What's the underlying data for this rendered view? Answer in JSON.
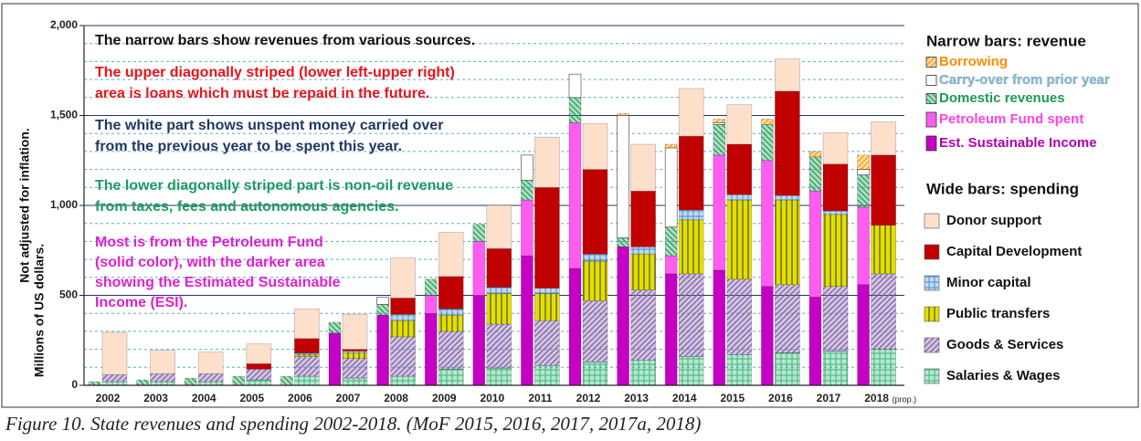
{
  "chart_data": {
    "type": "bar",
    "caption": "Figure 10. State revenues and spending 2002-2018. (MoF 2015, 2016, 2017, 2017a, 2018)",
    "ylabel": "Millions of US dollars.",
    "ylabel2": "Not adjusted for inflation.",
    "categories": [
      "2002",
      "2003",
      "2004",
      "2005",
      "2006",
      "2007",
      "2008",
      "2009",
      "2010",
      "2011",
      "2012",
      "2013",
      "2014",
      "2015",
      "2016",
      "2017",
      "2018"
    ],
    "category_note": "(prop.)",
    "ylim": [
      0,
      2000
    ],
    "yticks": [
      0,
      500,
      {
        "value": 1000,
        "label": "1,000"
      },
      {
        "value": 1500,
        "label": "1,500"
      },
      {
        "value": 2000,
        "label": "2,000"
      }
    ],
    "minor_yticks": [
      100,
      200,
      300,
      400,
      600,
      700,
      800,
      900,
      1100,
      1200,
      1300,
      1400,
      1600,
      1700,
      1800,
      1900
    ],
    "grid": true,
    "legend_groups": {
      "narrow": "Narrow bars: revenue",
      "wide": "Wide bars: spending"
    },
    "annotations": [
      {
        "color": "#111111",
        "lines": [
          "The narrow bars show revenues from various sources."
        ]
      },
      {
        "color": "#e8141b",
        "lines": [
          "The upper diagonally striped (lower left-upper right)",
          "area is loans which must be repaid in the future."
        ]
      },
      {
        "color": "#1f3864",
        "lines": [
          "The white part shows unspent money carried over",
          "from the previous year to be spent this year."
        ]
      },
      {
        "color": "#1e9a64",
        "lines": [
          "The lower diagonally striped part is non-oil revenue",
          "from taxes, fees and autonomous agencies."
        ]
      },
      {
        "color": "#e020d0",
        "lines": [
          "Most is from the Petroleum Fund",
          "(solid color), with the darker area",
          "showing the Estimated Sustainable",
          "Income (ESI)."
        ]
      }
    ],
    "series": [
      {
        "name": "Est. Sustainable Income",
        "group": "narrow",
        "color": "#c400c4",
        "label_color": "#b000b0",
        "pattern": "solid",
        "values": [
          0,
          0,
          0,
          0,
          0,
          290,
          390,
          400,
          500,
          720,
          650,
          770,
          620,
          640,
          550,
          490,
          560
        ]
      },
      {
        "name": "Petroleum Fund spent",
        "group": "narrow",
        "color": "#ff5cf0",
        "label_color": "#ff40e8",
        "pattern": "solid",
        "values": [
          0,
          0,
          0,
          0,
          0,
          0,
          0,
          100,
          300,
          310,
          810,
          0,
          100,
          640,
          700,
          590,
          430
        ]
      },
      {
        "name": "Domestic revenues",
        "group": "narrow",
        "color": "#1e9a50",
        "label_color": "#1e9a50",
        "pattern": "hatch-down",
        "values": [
          20,
          30,
          40,
          50,
          50,
          60,
          60,
          90,
          95,
          110,
          140,
          50,
          160,
          170,
          200,
          190,
          180
        ]
      },
      {
        "name": "Carry-over from prior year",
        "group": "narrow",
        "color": "#ffffff",
        "label_color": "#8fbcd6",
        "pattern": "solid",
        "values": [
          0,
          0,
          0,
          0,
          0,
          0,
          40,
          0,
          0,
          140,
          130,
          680,
          440,
          10,
          0,
          0,
          30
        ]
      },
      {
        "name": "Borrowing",
        "group": "narrow",
        "color": "#ff9900",
        "label_color": "#ff8c00",
        "pattern": "hatch-up",
        "values": [
          0,
          0,
          0,
          0,
          0,
          0,
          0,
          0,
          0,
          0,
          0,
          10,
          20,
          20,
          30,
          30,
          80
        ]
      },
      {
        "name": "Salaries & Wages",
        "group": "wide",
        "color": "#38b878",
        "pattern": "grid",
        "values": [
          20,
          20,
          20,
          30,
          50,
          40,
          50,
          90,
          95,
          110,
          130,
          140,
          160,
          170,
          180,
          190,
          200
        ]
      },
      {
        "name": "Goods & Services",
        "group": "wide",
        "color": "#7e5aa6",
        "pattern": "hatch-up",
        "values": [
          40,
          45,
          45,
          60,
          110,
          110,
          220,
          210,
          245,
          250,
          340,
          390,
          460,
          420,
          380,
          360,
          420
        ]
      },
      {
        "name": "Public transfers",
        "group": "wide",
        "color": "#e3e000",
        "pattern": "vlines",
        "values": [
          0,
          0,
          0,
          0,
          10,
          30,
          90,
          90,
          170,
          150,
          220,
          200,
          300,
          440,
          470,
          400,
          270
        ]
      },
      {
        "name": "Minor capital",
        "group": "wide",
        "color": "#4a90d0",
        "pattern": "grid",
        "values": [
          0,
          0,
          0,
          0,
          10,
          10,
          35,
          35,
          35,
          30,
          40,
          40,
          55,
          30,
          25,
          20,
          0
        ]
      },
      {
        "name": "Capital Development",
        "group": "wide",
        "color": "#c00000",
        "pattern": "solid",
        "values": [
          0,
          0,
          0,
          30,
          80,
          10,
          90,
          180,
          215,
          560,
          470,
          310,
          410,
          280,
          580,
          260,
          390
        ]
      },
      {
        "name": "Donor support",
        "group": "wide",
        "color": "#fde0cc",
        "pattern": "solid",
        "values": [
          235,
          130,
          120,
          110,
          165,
          195,
          225,
          245,
          240,
          280,
          255,
          260,
          265,
          220,
          180,
          175,
          185
        ]
      }
    ]
  }
}
